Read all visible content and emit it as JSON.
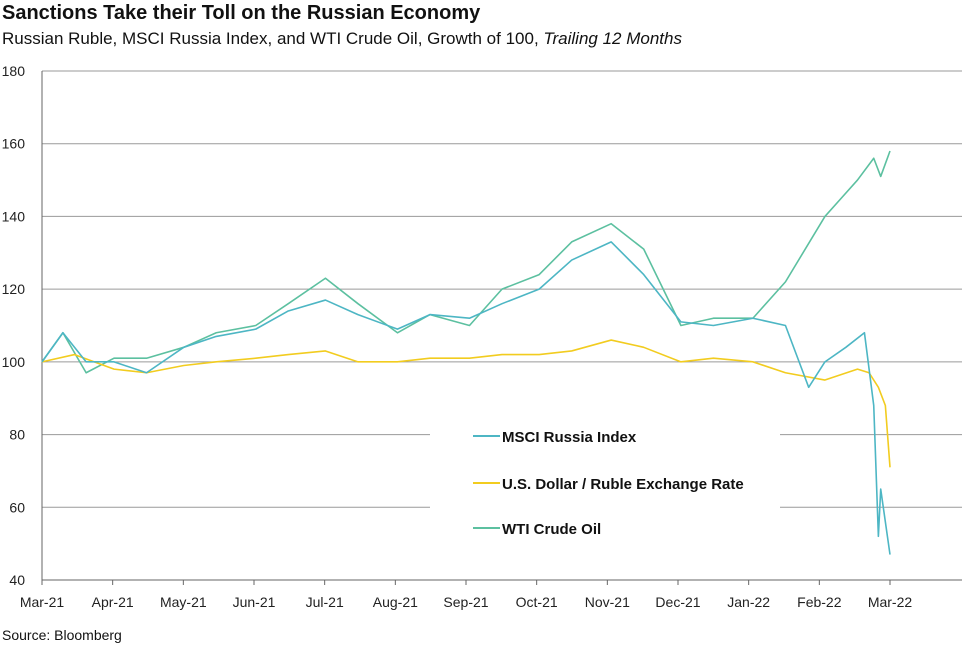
{
  "chart_data": {
    "type": "line",
    "title": "Sanctions Take their Toll on the Russian Economy",
    "subtitle": "Russian Ruble, MSCI Russia Index, and WTI Crude Oil, Growth of 100, ",
    "subtitle_italic": "Trailing 12 Months",
    "source": "Source: Bloomberg",
    "ylim": [
      40,
      180
    ],
    "yticks": [
      "40",
      "60",
      "80",
      "100",
      "120",
      "140",
      "160",
      "180"
    ],
    "xticks": [
      "Mar-21",
      "Apr-21",
      "May-21",
      "Jun-21",
      "Jul-21",
      "Aug-21",
      "Sep-21",
      "Oct-21",
      "Nov-21",
      "Dec-21",
      "Jan-22",
      "Feb-22",
      "Mar-22"
    ],
    "grid": true,
    "legend_position": "center-bottom",
    "series": [
      {
        "name": "MSCI Russia Index",
        "color": "#4db6c4",
        "points": [
          [
            "2021-03-01",
            100
          ],
          [
            "2021-03-10",
            108
          ],
          [
            "2021-03-20",
            100
          ],
          [
            "2021-04-01",
            100
          ],
          [
            "2021-04-15",
            97
          ],
          [
            "2021-05-01",
            104
          ],
          [
            "2021-05-15",
            107
          ],
          [
            "2021-06-01",
            109
          ],
          [
            "2021-06-15",
            114
          ],
          [
            "2021-07-01",
            117
          ],
          [
            "2021-07-15",
            113
          ],
          [
            "2021-08-01",
            109
          ],
          [
            "2021-08-15",
            113
          ],
          [
            "2021-09-01",
            112
          ],
          [
            "2021-09-15",
            116
          ],
          [
            "2021-10-01",
            120
          ],
          [
            "2021-10-15",
            128
          ],
          [
            "2021-11-01",
            133
          ],
          [
            "2021-11-15",
            124
          ],
          [
            "2021-12-01",
            111
          ],
          [
            "2021-12-15",
            110
          ],
          [
            "2022-01-01",
            112
          ],
          [
            "2022-01-15",
            110
          ],
          [
            "2022-01-25",
            93
          ],
          [
            "2022-02-01",
            100
          ],
          [
            "2022-02-10",
            104
          ],
          [
            "2022-02-18",
            108
          ],
          [
            "2022-02-22",
            88
          ],
          [
            "2022-02-24",
            52
          ],
          [
            "2022-02-25",
            65
          ],
          [
            "2022-03-01",
            47
          ]
        ]
      },
      {
        "name": "U.S. Dollar / Ruble Exchange Rate",
        "color": "#f2cc1f",
        "points": [
          [
            "2021-03-01",
            100
          ],
          [
            "2021-03-15",
            102
          ],
          [
            "2021-04-01",
            98
          ],
          [
            "2021-04-15",
            97
          ],
          [
            "2021-05-01",
            99
          ],
          [
            "2021-05-15",
            100
          ],
          [
            "2021-06-01",
            101
          ],
          [
            "2021-06-15",
            102
          ],
          [
            "2021-07-01",
            103
          ],
          [
            "2021-07-15",
            100
          ],
          [
            "2021-08-01",
            100
          ],
          [
            "2021-08-15",
            101
          ],
          [
            "2021-09-01",
            101
          ],
          [
            "2021-09-15",
            102
          ],
          [
            "2021-10-01",
            102
          ],
          [
            "2021-10-15",
            103
          ],
          [
            "2021-11-01",
            106
          ],
          [
            "2021-11-15",
            104
          ],
          [
            "2021-12-01",
            100
          ],
          [
            "2021-12-15",
            101
          ],
          [
            "2022-01-01",
            100
          ],
          [
            "2022-01-15",
            97
          ],
          [
            "2022-02-01",
            95
          ],
          [
            "2022-02-15",
            98
          ],
          [
            "2022-02-20",
            97
          ],
          [
            "2022-02-24",
            93
          ],
          [
            "2022-02-27",
            88
          ],
          [
            "2022-03-01",
            71
          ]
        ]
      },
      {
        "name": "WTI Crude Oil",
        "color": "#5cc0a0",
        "points": [
          [
            "2021-03-01",
            100
          ],
          [
            "2021-03-10",
            108
          ],
          [
            "2021-03-20",
            97
          ],
          [
            "2021-04-01",
            101
          ],
          [
            "2021-04-15",
            101
          ],
          [
            "2021-05-01",
            104
          ],
          [
            "2021-05-15",
            108
          ],
          [
            "2021-06-01",
            110
          ],
          [
            "2021-06-15",
            116
          ],
          [
            "2021-07-01",
            123
          ],
          [
            "2021-07-15",
            116
          ],
          [
            "2021-08-01",
            108
          ],
          [
            "2021-08-15",
            113
          ],
          [
            "2021-09-01",
            110
          ],
          [
            "2021-09-15",
            120
          ],
          [
            "2021-10-01",
            124
          ],
          [
            "2021-10-15",
            133
          ],
          [
            "2021-11-01",
            138
          ],
          [
            "2021-11-15",
            131
          ],
          [
            "2021-12-01",
            110
          ],
          [
            "2021-12-15",
            112
          ],
          [
            "2022-01-01",
            112
          ],
          [
            "2022-01-15",
            122
          ],
          [
            "2022-02-01",
            140
          ],
          [
            "2022-02-08",
            145
          ],
          [
            "2022-02-15",
            150
          ],
          [
            "2022-02-22",
            156
          ],
          [
            "2022-02-25",
            151
          ],
          [
            "2022-03-01",
            158
          ]
        ]
      }
    ]
  }
}
